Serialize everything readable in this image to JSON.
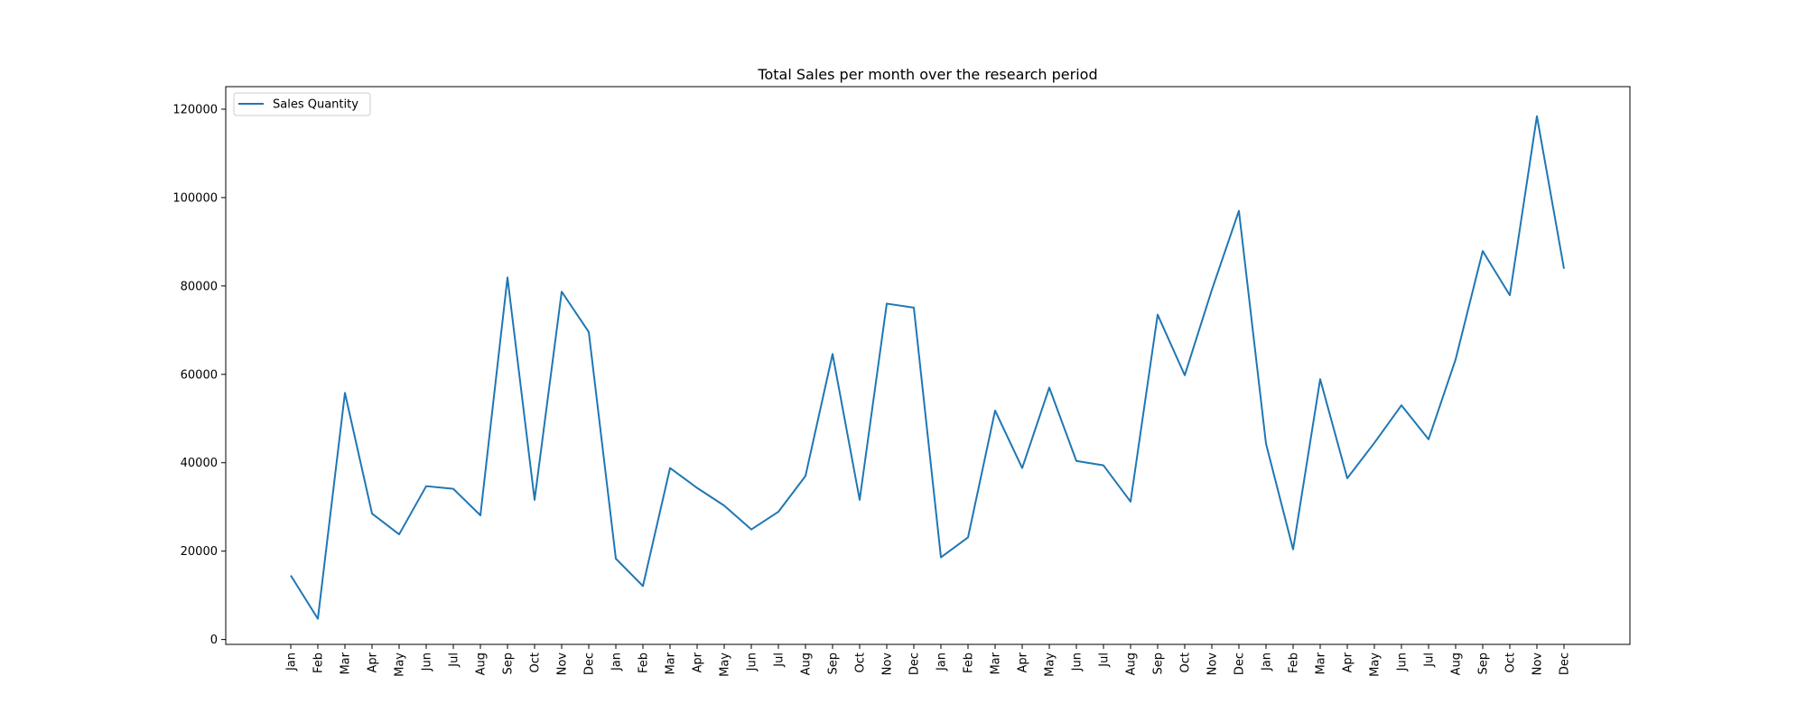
{
  "chart_data": {
    "type": "line",
    "title": "Total Sales per month over the research period",
    "xlabel": "",
    "ylabel": "",
    "categories": [
      "Jan",
      "Feb",
      "Mar",
      "Apr",
      "May",
      "Jun",
      "Jul",
      "Aug",
      "Sep",
      "Oct",
      "Nov",
      "Dec",
      "Jan",
      "Feb",
      "Mar",
      "Apr",
      "May",
      "Jun",
      "Jul",
      "Aug",
      "Sep",
      "Oct",
      "Nov",
      "Dec",
      "Jan",
      "Feb",
      "Mar",
      "Apr",
      "May",
      "Jun",
      "Jul",
      "Aug",
      "Sep",
      "Oct",
      "Nov",
      "Dec",
      "Jan",
      "Feb",
      "Mar",
      "Apr",
      "May",
      "Jun",
      "Jul",
      "Aug",
      "Sep",
      "Oct",
      "Nov",
      "Dec"
    ],
    "series": [
      {
        "name": "Sales Quantity",
        "color": "#1f77b4",
        "values": [
          14500,
          4700,
          55800,
          28500,
          23800,
          34700,
          34100,
          28100,
          81900,
          31600,
          78700,
          69600,
          18300,
          12100,
          38800,
          34300,
          30300,
          24900,
          28900,
          37000,
          64600,
          31600,
          76000,
          75100,
          18600,
          23100,
          51800,
          38800,
          57000,
          40400,
          39400,
          31200,
          73500,
          59800,
          79100,
          97000,
          44300,
          20400,
          58900,
          36500,
          44500,
          53000,
          45300,
          63400,
          87900,
          77900,
          118400,
          83900
        ]
      }
    ],
    "ylim": [
      -1100,
      125100
    ],
    "yticks": [
      0,
      20000,
      40000,
      60000,
      80000,
      100000,
      120000
    ],
    "grid": false,
    "legend": "upper left"
  }
}
